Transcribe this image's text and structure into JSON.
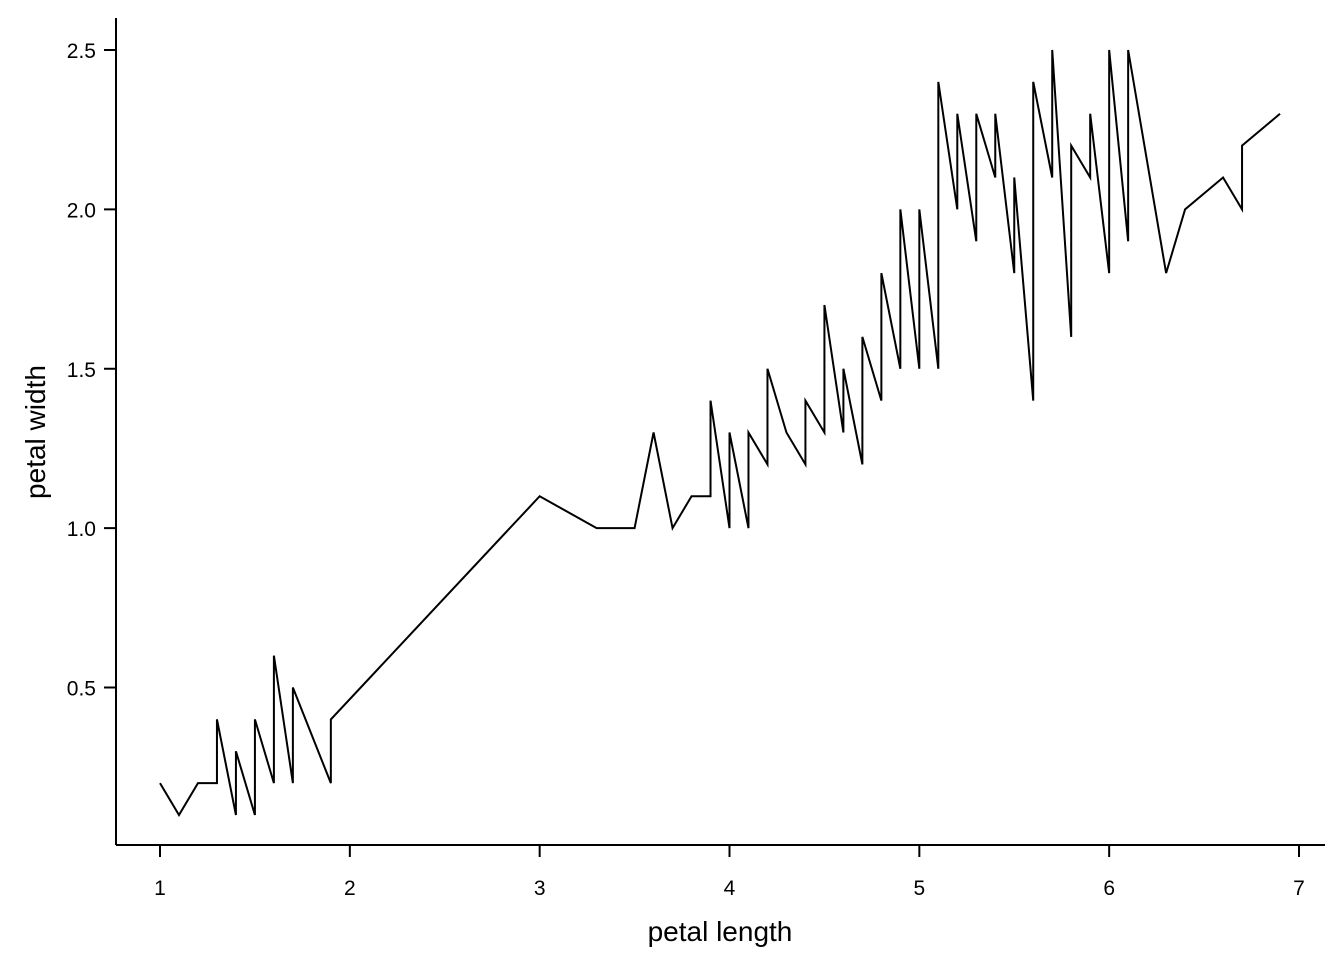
{
  "chart_data": {
    "type": "line",
    "title": "",
    "xlabel": "petal length",
    "ylabel": "petal width",
    "xlim": [
      0.77,
      7.13
    ],
    "ylim": [
      0.0,
      2.6
    ],
    "xticks": [
      1,
      2,
      3,
      4,
      5,
      6,
      7
    ],
    "xtick_labels": [
      "1",
      "2",
      "3",
      "4",
      "5",
      "6",
      "7"
    ],
    "yticks": [
      0.5,
      1.0,
      1.5,
      2.0,
      2.5
    ],
    "ytick_labels": [
      "0.5",
      "1.0",
      "1.5",
      "2.0",
      "2.5"
    ],
    "grid": false,
    "line_color": "#000000",
    "series": [
      {
        "x": [
          1.0,
          1.1,
          1.2,
          1.3,
          1.3,
          1.3,
          1.4,
          1.4,
          1.5,
          1.5,
          1.5,
          1.6,
          1.6,
          1.7,
          1.7,
          1.9,
          1.9,
          3.0,
          3.3,
          3.5,
          3.6,
          3.7,
          3.8,
          3.9,
          3.9,
          4.0,
          4.0,
          4.1,
          4.1,
          4.2,
          4.2,
          4.3,
          4.4,
          4.4,
          4.5,
          4.5,
          4.6,
          4.6,
          4.7,
          4.7,
          4.8,
          4.8,
          4.9,
          4.9,
          5.0,
          5.0,
          5.1,
          5.1,
          5.2,
          5.2,
          5.3,
          5.3,
          5.4,
          5.4,
          5.5,
          5.5,
          5.6,
          5.6,
          5.7,
          5.7,
          5.8,
          5.8,
          5.9,
          5.9,
          6.0,
          6.0,
          6.1,
          6.1,
          6.3,
          6.4,
          6.6,
          6.7,
          6.7,
          6.9
        ],
        "y": [
          0.2,
          0.1,
          0.2,
          0.2,
          0.4,
          0.4,
          0.1,
          0.3,
          0.1,
          0.4,
          0.4,
          0.2,
          0.6,
          0.2,
          0.5,
          0.2,
          0.4,
          1.1,
          1.0,
          1.0,
          1.3,
          1.0,
          1.1,
          1.1,
          1.4,
          1.0,
          1.3,
          1.0,
          1.3,
          1.2,
          1.5,
          1.3,
          1.2,
          1.4,
          1.3,
          1.7,
          1.3,
          1.5,
          1.2,
          1.6,
          1.4,
          1.8,
          1.5,
          2.0,
          1.5,
          2.0,
          1.5,
          2.4,
          2.0,
          2.3,
          1.9,
          2.3,
          2.1,
          2.3,
          1.8,
          2.1,
          1.4,
          2.4,
          2.1,
          2.5,
          1.6,
          2.2,
          2.1,
          2.3,
          1.8,
          2.5,
          1.9,
          2.5,
          1.8,
          2.0,
          2.1,
          2.0,
          2.2,
          2.3
        ]
      }
    ]
  }
}
